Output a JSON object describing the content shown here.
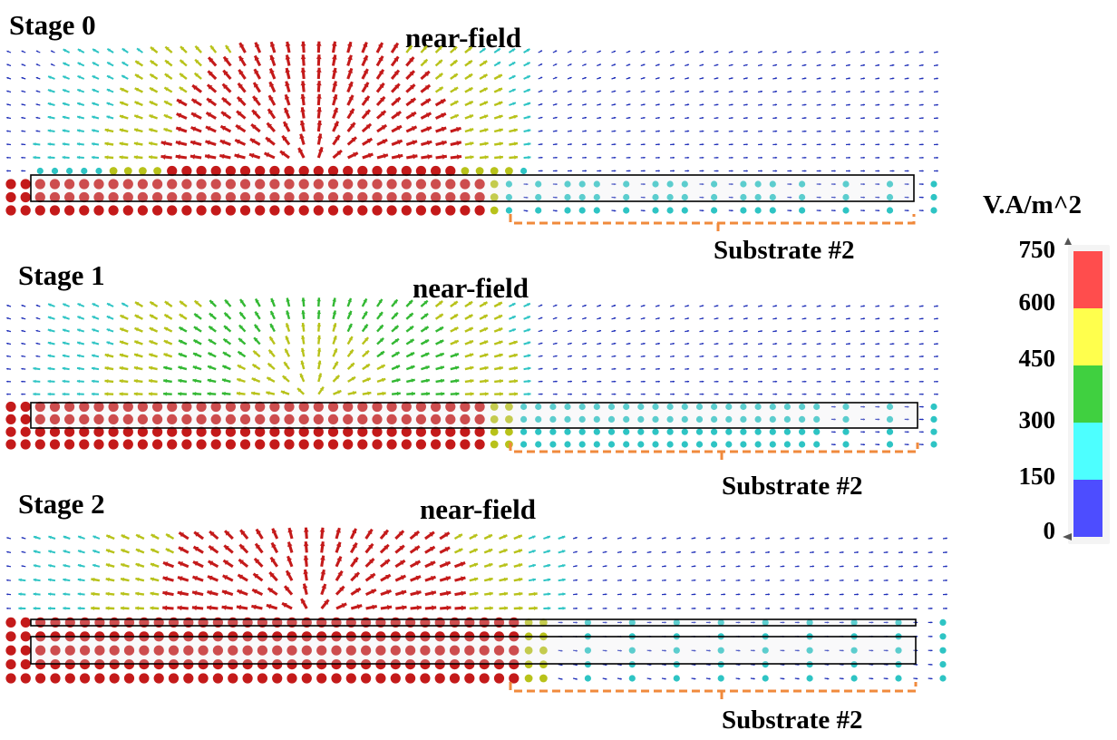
{
  "figure": {
    "stages": [
      {
        "title": "Stage 0",
        "near_field_label": "near-field",
        "substrate_label": "Substrate #2",
        "layers": 1,
        "hot_region_end_fraction": 0.52,
        "dome_peak_level": 4
      },
      {
        "title": "Stage 1",
        "near_field_label": "near-field",
        "substrate_label": "Substrate #2",
        "layers": 1,
        "hot_region_end_fraction": 0.52,
        "dome_peak_level": 3
      },
      {
        "title": "Stage 2",
        "near_field_label": "near-field",
        "substrate_label": "Substrate #2",
        "layers": 2,
        "hot_region_end_fraction": 0.55,
        "dome_peak_level": 4
      }
    ],
    "colorbar": {
      "unit": "V.A/m^2",
      "ticks": [
        "750",
        "600",
        "450",
        "300",
        "150",
        "0"
      ],
      "colors": [
        "#ff4d4d",
        "#ffff4d",
        "#40d040",
        "#4dffff",
        "#4d4dff"
      ]
    },
    "vector_colors": {
      "level0": "#1f2fb8",
      "level1": "#2ec4c4",
      "level2": "#33b833",
      "level3": "#b8c21a",
      "level4": "#c41a1a"
    },
    "bracket_color": "#f08a3c"
  }
}
